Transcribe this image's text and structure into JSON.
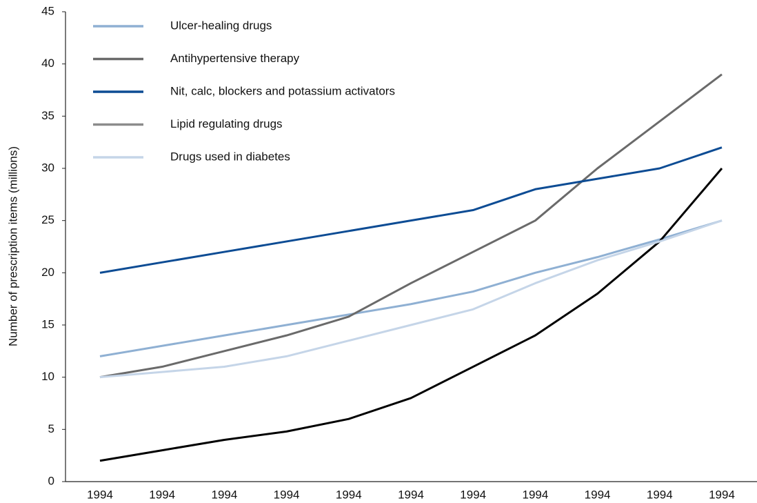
{
  "chart_data": {
    "type": "line",
    "y_label": "Number of prescription items (millions)",
    "categories": [
      "1994",
      "1994",
      "1994",
      "1994",
      "1994",
      "1994",
      "1994",
      "1994",
      "1994",
      "1994",
      "1994"
    ],
    "series": [
      {
        "name": "Ulcer-healing drugs",
        "color": "#8fb0d3",
        "values": [
          12,
          13,
          14,
          15,
          16,
          17,
          18.2,
          20,
          21.5,
          23.2,
          25
        ]
      },
      {
        "name": "Antihypertensive therapy",
        "color": "#6a6a6a",
        "values": [
          10,
          11,
          12.5,
          14,
          15.8,
          19,
          22,
          25,
          30,
          34.5,
          39
        ]
      },
      {
        "name": "Nit, calc, blockers and potassium activators",
        "color": "#0d4c94",
        "values": [
          20,
          21,
          22,
          23,
          24,
          25,
          26,
          28,
          29,
          30,
          32
        ]
      },
      {
        "name": "Lipid regulating drugs",
        "color": "#000000",
        "legend_color": "#8c8c8c",
        "values": [
          2,
          3,
          4,
          4.8,
          6,
          8,
          11,
          14,
          18,
          23,
          30
        ]
      },
      {
        "name": "Drugs used in diabetes",
        "color": "#c5d5e8",
        "values": [
          10,
          10.5,
          11,
          12,
          13.5,
          15,
          16.5,
          19,
          21.2,
          23,
          25
        ]
      }
    ],
    "ylim": [
      0,
      45
    ],
    "yticks": [
      0,
      5,
      10,
      15,
      20,
      25,
      30,
      35,
      40,
      45
    ],
    "grid": false,
    "legend": "top-left"
  }
}
